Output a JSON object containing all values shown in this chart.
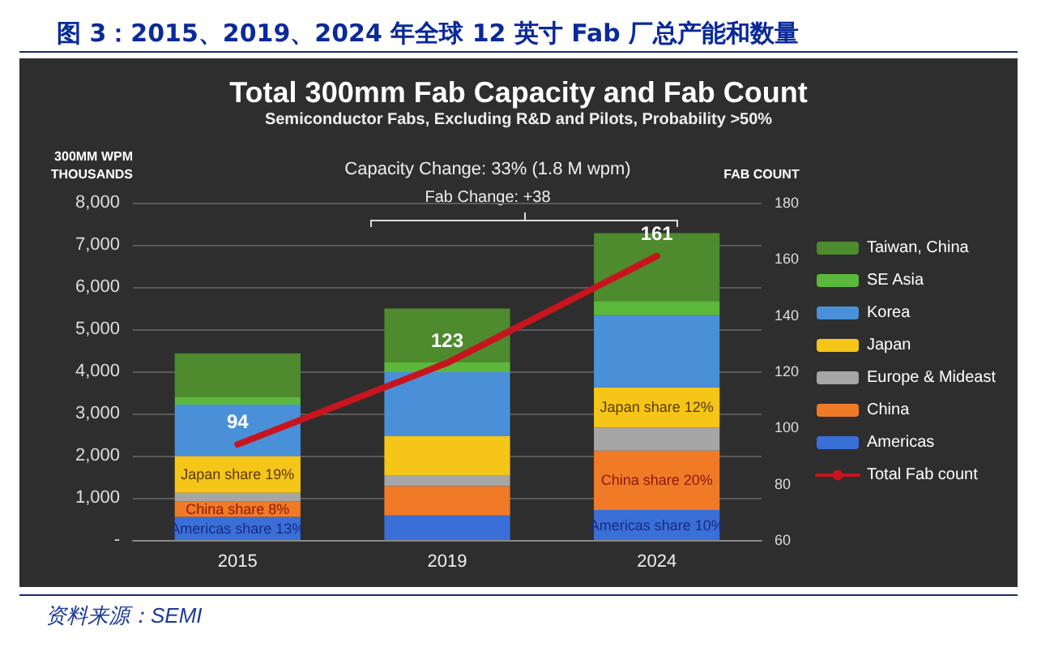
{
  "chart_data": {
    "type": "bar",
    "stacked": true,
    "title": "图 3：2015、2019、2024 年全球 12 英寸 Fab 厂总产能和数量",
    "subtitle": "Total 300mm Fab Capacity and Fab Count",
    "ylabel": "300MM WPM\nTHOUSANDS",
    "y2label": "FAB COUNT",
    "categories": [
      "2015",
      "2019",
      "2024"
    ],
    "series": [
      {
        "name": "Americas",
        "color": "#3a6fd8",
        "values": [
          550,
          580,
          710
        ],
        "value_labels": [
          "Americas share 13%",
          null,
          "Americas share 10%"
        ]
      },
      {
        "name": "China",
        "color": "#f07a26",
        "values": [
          370,
          700,
          1410
        ],
        "value_labels": [
          "China share 8%",
          null,
          "China share 20%"
        ]
      },
      {
        "name": "Europe & Mideast",
        "color": "#a6a6a6",
        "values": [
          200,
          260,
          550
        ]
      },
      {
        "name": "Japan",
        "color": "#f5c518",
        "values": [
          870,
          920,
          950
        ],
        "value_labels": [
          "Japan share 19%",
          null,
          "Japan share 12%"
        ]
      },
      {
        "name": "Korea",
        "color": "#4a90d9",
        "values": [
          1220,
          1520,
          1710
        ]
      },
      {
        "name": "SE Asia",
        "color": "#5cb83a",
        "values": [
          190,
          230,
          340
        ]
      },
      {
        "name": "Taiwan, China",
        "color": "#4e8a2e",
        "values": [
          1030,
          1280,
          1610
        ]
      },
      {
        "name": "Total Fab count",
        "type": "line",
        "axis": "y2",
        "color": "#c8141e",
        "values": [
          94,
          123,
          161
        ],
        "value_labels": [
          "94",
          "123",
          "161"
        ]
      }
    ],
    "ylim": [
      0,
      8000
    ],
    "yticks": [
      {
        "value": 0,
        "label": "-"
      },
      {
        "value": 1000,
        "label": "1,000"
      },
      {
        "value": 2000,
        "label": "2,000"
      },
      {
        "value": 3000,
        "label": "3,000"
      },
      {
        "value": 4000,
        "label": "4,000"
      },
      {
        "value": 5000,
        "label": "5,000"
      },
      {
        "value": 6000,
        "label": "6,000"
      },
      {
        "value": 7000,
        "label": "7,000"
      },
      {
        "value": 8000,
        "label": "8,000"
      }
    ],
    "y2lim": [
      60,
      180
    ],
    "y2ticks": [
      60,
      80,
      100,
      120,
      140,
      160,
      180
    ],
    "grid": "y",
    "legend": "right",
    "marker": "none",
    "annotations": [
      "Semiconductor Fabs, Excluding R&D and Pilots, Probability >50%",
      "Capacity Change: 33% (1.8 M wpm)",
      "Fab Change: +38",
      "资料来源：SEMI"
    ]
  }
}
